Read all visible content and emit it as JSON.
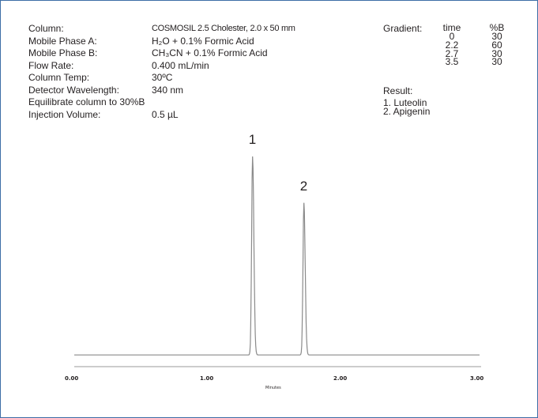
{
  "conditions": [
    {
      "label": "Column:",
      "value": "COSMOSIL 2.5 Cholester, 2.0 x 50 mm"
    },
    {
      "label": "Mobile Phase A:",
      "value": "H₂O + 0.1% Formic Acid"
    },
    {
      "label": "Mobile Phase B:",
      "value": "CH₃CN + 0.1% Formic Acid"
    },
    {
      "label": "Flow Rate:",
      "value": "0.400  mL/min"
    },
    {
      "label": "Column Temp:",
      "value": "30ºC"
    },
    {
      "label": "Detector Wavelength:",
      "value": "340 nm"
    }
  ],
  "equilibrate": "Equilibrate column to 30%B",
  "injection": {
    "label": "Injection Volume:",
    "value": "0.5 µL"
  },
  "gradient": {
    "title": "Gradient:",
    "time_header": "time",
    "b_header": "%B",
    "time": [
      "0",
      "2.2",
      "2.7",
      "3.5"
    ],
    "percent_b": [
      "30",
      "60",
      "30",
      "30"
    ]
  },
  "result": {
    "title": "Result:",
    "items": [
      "1. Luteolin",
      "2. Apigenin"
    ]
  },
  "colors": {
    "border": "#3d6ea6",
    "trace": "#8a8a8a",
    "text": "#231f20"
  },
  "chart_data": {
    "type": "line",
    "xlabel": "Minutes",
    "ylabel": "",
    "xlim": [
      0.0,
      3.0
    ],
    "ylim": [
      0,
      100
    ],
    "x_ticks": [
      "0.00",
      "1.00",
      "2.00",
      "3.00"
    ],
    "grid": false,
    "baseline": 1.5,
    "peaks": [
      {
        "label": "1",
        "compound": "Luteolin",
        "retention_time": 1.32,
        "height": 100
      },
      {
        "label": "2",
        "compound": "Apigenin",
        "retention_time": 1.7,
        "height": 77
      }
    ]
  }
}
